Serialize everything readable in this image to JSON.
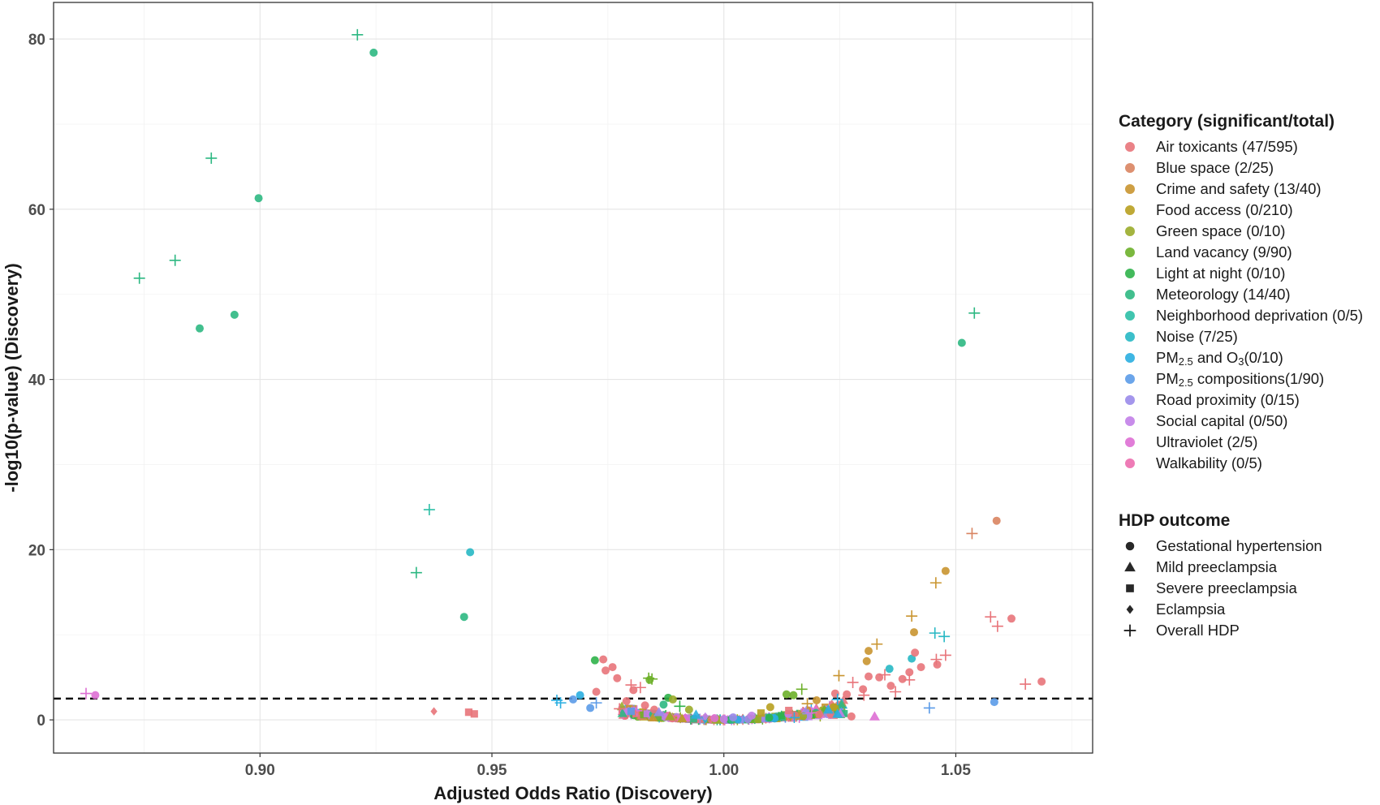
{
  "chart_data": {
    "type": "scatter",
    "xlabel": "Adjusted Odds Ratio (Discovery)",
    "ylabel": "-log10(p-value) (Discovery)",
    "xlim": [
      0.8555,
      1.0795
    ],
    "ylim": [
      -3.9,
      84.3
    ],
    "x_ticks": [
      0.9,
      0.95,
      1.0,
      1.05
    ],
    "x_tick_labels": [
      "0.90",
      "0.95",
      "1.00",
      "1.05"
    ],
    "y_ticks": [
      0,
      20,
      40,
      60,
      80
    ],
    "y_tick_labels": [
      "0",
      "20",
      "40",
      "60",
      "80"
    ],
    "grid": true,
    "threshold_line": {
      "y": 2.5,
      "style": "dashed"
    },
    "legend_position": "right",
    "legend_category": {
      "title": "Category (significant/total)",
      "items": [
        {
          "key": "air",
          "label": "Air toxicants (47/595)",
          "color": "#E8747A"
        },
        {
          "key": "blue",
          "label": "Blue space (2/25)",
          "color": "#D98461"
        },
        {
          "key": "crime",
          "label": "Crime and safety (13/40)",
          "color": "#C99530"
        },
        {
          "key": "food",
          "label": "Food access (0/210)",
          "color": "#B8A020"
        },
        {
          "key": "green",
          "label": "Green space (0/10)",
          "color": "#9AAC2A"
        },
        {
          "key": "land",
          "label": "Land vacancy (9/90)",
          "color": "#6DB02A"
        },
        {
          "key": "light",
          "label": "Light at night (0/10)",
          "color": "#2FB34A"
        },
        {
          "key": "meteo",
          "label": "Meteorology (14/40)",
          "color": "#2DB882"
        },
        {
          "key": "ndep",
          "label": "Neighborhood deprivation (0/5)",
          "color": "#2CBFA6"
        },
        {
          "key": "noise",
          "label": "Noise (7/25)",
          "color": "#27B8C4"
        },
        {
          "key": "pmo3",
          "label_main": "PM",
          "label_sub": "2.5",
          "label_mid": " and O",
          "label_sub2": "3",
          "label_end": "(0/10)",
          "color": "#2AAEE0"
        },
        {
          "key": "pmcomp",
          "label_main": "PM",
          "label_sub": "2.5",
          "label_end": " compositions(1/90)",
          "color": "#5B9BE8"
        },
        {
          "key": "road",
          "label": "Road proximity (0/15)",
          "color": "#9A8BEA"
        },
        {
          "key": "social",
          "label": "Social capital (0/50)",
          "color": "#C27FE8"
        },
        {
          "key": "uv",
          "label": "Ultraviolet (2/5)",
          "color": "#DE6FD4"
        },
        {
          "key": "walk",
          "label": "Walkability (0/5)",
          "color": "#EC6DAE"
        }
      ]
    },
    "legend_outcome": {
      "title": "HDP outcome",
      "items": [
        {
          "shape": "circle",
          "label": "Gestational hypertension"
        },
        {
          "shape": "triangle",
          "label": "Mild preeclampsia"
        },
        {
          "shape": "square",
          "label": "Severe preeclampsia"
        },
        {
          "shape": "diamond",
          "label": "Eclampsia"
        },
        {
          "shape": "plus",
          "label": "Overall HDP"
        }
      ]
    },
    "points": [
      {
        "x": 0.921,
        "y": 80.5,
        "cat": "meteo",
        "shape": "plus"
      },
      {
        "x": 0.9245,
        "y": 78.4,
        "cat": "meteo",
        "shape": "circle"
      },
      {
        "x": 0.8895,
        "y": 66.0,
        "cat": "meteo",
        "shape": "plus"
      },
      {
        "x": 0.8997,
        "y": 61.3,
        "cat": "meteo",
        "shape": "circle"
      },
      {
        "x": 0.8817,
        "y": 54.0,
        "cat": "meteo",
        "shape": "plus"
      },
      {
        "x": 0.874,
        "y": 51.9,
        "cat": "meteo",
        "shape": "plus"
      },
      {
        "x": 0.8945,
        "y": 47.6,
        "cat": "meteo",
        "shape": "circle"
      },
      {
        "x": 0.887,
        "y": 46.0,
        "cat": "meteo",
        "shape": "circle"
      },
      {
        "x": 1.054,
        "y": 47.8,
        "cat": "meteo",
        "shape": "plus"
      },
      {
        "x": 1.0513,
        "y": 44.3,
        "cat": "meteo",
        "shape": "circle"
      },
      {
        "x": 0.9365,
        "y": 24.7,
        "cat": "ndep",
        "shape": "plus"
      },
      {
        "x": 0.9453,
        "y": 19.7,
        "cat": "noise",
        "shape": "circle"
      },
      {
        "x": 0.9337,
        "y": 17.3,
        "cat": "meteo",
        "shape": "plus"
      },
      {
        "x": 0.944,
        "y": 12.1,
        "cat": "meteo",
        "shape": "circle"
      },
      {
        "x": 1.0588,
        "y": 23.4,
        "cat": "blue",
        "shape": "circle"
      },
      {
        "x": 1.0535,
        "y": 21.9,
        "cat": "blue",
        "shape": "plus"
      },
      {
        "x": 1.0478,
        "y": 17.5,
        "cat": "crime",
        "shape": "circle"
      },
      {
        "x": 1.0457,
        "y": 16.1,
        "cat": "crime",
        "shape": "plus"
      },
      {
        "x": 1.0405,
        "y": 12.2,
        "cat": "crime",
        "shape": "plus"
      },
      {
        "x": 1.041,
        "y": 10.3,
        "cat": "crime",
        "shape": "circle"
      },
      {
        "x": 1.033,
        "y": 8.9,
        "cat": "crime",
        "shape": "plus"
      },
      {
        "x": 1.0312,
        "y": 8.1,
        "cat": "crime",
        "shape": "circle"
      },
      {
        "x": 1.0308,
        "y": 6.9,
        "cat": "crime",
        "shape": "circle"
      },
      {
        "x": 1.0248,
        "y": 5.2,
        "cat": "crime",
        "shape": "plus"
      },
      {
        "x": 1.0455,
        "y": 10.2,
        "cat": "noise",
        "shape": "plus"
      },
      {
        "x": 1.0475,
        "y": 9.8,
        "cat": "noise",
        "shape": "plus"
      },
      {
        "x": 1.0405,
        "y": 7.2,
        "cat": "noise",
        "shape": "circle"
      },
      {
        "x": 1.0357,
        "y": 6.0,
        "cat": "noise",
        "shape": "circle"
      },
      {
        "x": 1.0575,
        "y": 12.1,
        "cat": "air",
        "shape": "plus"
      },
      {
        "x": 1.062,
        "y": 11.9,
        "cat": "air",
        "shape": "circle"
      },
      {
        "x": 1.059,
        "y": 11.0,
        "cat": "air",
        "shape": "plus"
      },
      {
        "x": 1.0412,
        "y": 7.9,
        "cat": "air",
        "shape": "circle"
      },
      {
        "x": 1.0478,
        "y": 7.6,
        "cat": "air",
        "shape": "plus"
      },
      {
        "x": 1.0458,
        "y": 7.1,
        "cat": "air",
        "shape": "plus"
      },
      {
        "x": 1.046,
        "y": 6.5,
        "cat": "air",
        "shape": "circle"
      },
      {
        "x": 1.0425,
        "y": 6.2,
        "cat": "air",
        "shape": "circle"
      },
      {
        "x": 1.04,
        "y": 5.6,
        "cat": "air",
        "shape": "circle"
      },
      {
        "x": 1.0385,
        "y": 4.8,
        "cat": "air",
        "shape": "circle"
      },
      {
        "x": 1.04,
        "y": 4.7,
        "cat": "air",
        "shape": "plus"
      },
      {
        "x": 1.0347,
        "y": 5.3,
        "cat": "air",
        "shape": "plus"
      },
      {
        "x": 1.0335,
        "y": 5.0,
        "cat": "air",
        "shape": "circle"
      },
      {
        "x": 1.0312,
        "y": 5.1,
        "cat": "air",
        "shape": "circle"
      },
      {
        "x": 1.036,
        "y": 4.0,
        "cat": "air",
        "shape": "circle"
      },
      {
        "x": 1.037,
        "y": 3.3,
        "cat": "air",
        "shape": "plus"
      },
      {
        "x": 1.0278,
        "y": 4.4,
        "cat": "air",
        "shape": "plus"
      },
      {
        "x": 1.03,
        "y": 3.6,
        "cat": "air",
        "shape": "circle"
      },
      {
        "x": 1.0302,
        "y": 2.9,
        "cat": "air",
        "shape": "plus"
      },
      {
        "x": 1.0265,
        "y": 3.0,
        "cat": "air",
        "shape": "circle"
      },
      {
        "x": 1.024,
        "y": 3.1,
        "cat": "air",
        "shape": "circle"
      },
      {
        "x": 1.0275,
        "y": 0.4,
        "cat": "air",
        "shape": "circle"
      },
      {
        "x": 1.065,
        "y": 4.2,
        "cat": "air",
        "shape": "plus"
      },
      {
        "x": 1.0685,
        "y": 4.5,
        "cat": "air",
        "shape": "circle"
      },
      {
        "x": 0.974,
        "y": 7.1,
        "cat": "air",
        "shape": "circle"
      },
      {
        "x": 0.976,
        "y": 6.2,
        "cat": "air",
        "shape": "circle"
      },
      {
        "x": 0.9745,
        "y": 5.8,
        "cat": "air",
        "shape": "circle"
      },
      {
        "x": 0.977,
        "y": 4.9,
        "cat": "air",
        "shape": "circle"
      },
      {
        "x": 0.98,
        "y": 4.1,
        "cat": "air",
        "shape": "plus"
      },
      {
        "x": 0.982,
        "y": 3.8,
        "cat": "air",
        "shape": "plus"
      },
      {
        "x": 0.9805,
        "y": 3.5,
        "cat": "air",
        "shape": "circle"
      },
      {
        "x": 0.9725,
        "y": 3.3,
        "cat": "air",
        "shape": "circle"
      },
      {
        "x": 0.979,
        "y": 2.2,
        "cat": "air",
        "shape": "circle"
      },
      {
        "x": 0.9775,
        "y": 1.3,
        "cat": "air",
        "shape": "plus"
      },
      {
        "x": 0.9722,
        "y": 7.0,
        "cat": "light",
        "shape": "circle"
      },
      {
        "x": 0.9838,
        "y": 4.9,
        "cat": "land",
        "shape": "plus"
      },
      {
        "x": 0.9845,
        "y": 4.8,
        "cat": "land",
        "shape": "plus"
      },
      {
        "x": 0.984,
        "y": 4.7,
        "cat": "land",
        "shape": "circle"
      },
      {
        "x": 1.0168,
        "y": 3.6,
        "cat": "land",
        "shape": "plus"
      },
      {
        "x": 1.0135,
        "y": 3.0,
        "cat": "land",
        "shape": "circle"
      },
      {
        "x": 0.8625,
        "y": 3.1,
        "cat": "uv",
        "shape": "plus"
      },
      {
        "x": 0.8645,
        "y": 2.9,
        "cat": "uv",
        "shape": "circle"
      },
      {
        "x": 0.9375,
        "y": 1.0,
        "cat": "air",
        "shape": "diamond"
      },
      {
        "x": 0.945,
        "y": 0.9,
        "cat": "air",
        "shape": "square"
      },
      {
        "x": 0.9462,
        "y": 0.7,
        "cat": "air",
        "shape": "square"
      },
      {
        "x": 1.0325,
        "y": 0.4,
        "cat": "uv",
        "shape": "triangle"
      },
      {
        "x": 0.964,
        "y": 2.3,
        "cat": "pmo3",
        "shape": "plus"
      },
      {
        "x": 0.9648,
        "y": 2.0,
        "cat": "pmo3",
        "shape": "plus"
      },
      {
        "x": 0.969,
        "y": 2.9,
        "cat": "pmo3",
        "shape": "circle"
      },
      {
        "x": 0.9675,
        "y": 2.4,
        "cat": "pmcomp",
        "shape": "circle"
      },
      {
        "x": 0.9725,
        "y": 2.0,
        "cat": "pmcomp",
        "shape": "plus"
      },
      {
        "x": 0.9712,
        "y": 1.4,
        "cat": "pmcomp",
        "shape": "circle"
      },
      {
        "x": 1.0583,
        "y": 2.1,
        "cat": "pmcomp",
        "shape": "circle"
      },
      {
        "x": 1.0443,
        "y": 1.4,
        "cat": "pmcomp",
        "shape": "plus"
      },
      {
        "x": 1.0245,
        "y": 2.4,
        "cat": "pmo3",
        "shape": "plus"
      },
      {
        "x": 1.0225,
        "y": 1.2,
        "cat": "pmo3",
        "shape": "triangle"
      },
      {
        "x": 1.0245,
        "y": 0.7,
        "cat": "pmo3",
        "shape": "triangle"
      },
      {
        "x": 0.988,
        "y": 2.6,
        "cat": "light",
        "shape": "circle"
      },
      {
        "x": 0.989,
        "y": 2.4,
        "cat": "green",
        "shape": "circle"
      },
      {
        "x": 0.987,
        "y": 1.8,
        "cat": "meteo",
        "shape": "circle"
      },
      {
        "x": 0.9905,
        "y": 1.6,
        "cat": "light",
        "shape": "plus"
      },
      {
        "x": 0.9925,
        "y": 1.2,
        "cat": "green",
        "shape": "circle"
      },
      {
        "x": 1.015,
        "y": 2.9,
        "cat": "land",
        "shape": "circle"
      },
      {
        "x": 1.02,
        "y": 2.3,
        "cat": "crime",
        "shape": "circle"
      },
      {
        "x": 1.018,
        "y": 1.9,
        "cat": "crime",
        "shape": "plus"
      },
      {
        "x": 1.01,
        "y": 1.5,
        "cat": "food",
        "shape": "circle"
      },
      {
        "x": 0.983,
        "y": 1.7,
        "cat": "air",
        "shape": "circle"
      },
      {
        "x": 0.985,
        "y": 1.2,
        "cat": "air",
        "shape": "circle"
      },
      {
        "x": 0.986,
        "y": 0.9,
        "cat": "road",
        "shape": "triangle"
      },
      {
        "x": 0.98,
        "y": 1.0,
        "cat": "pmcomp",
        "shape": "square"
      },
      {
        "x": 1.014,
        "y": 1.1,
        "cat": "air",
        "shape": "square"
      },
      {
        "x": 1.008,
        "y": 0.8,
        "cat": "food",
        "shape": "square"
      },
      {
        "x": 0.994,
        "y": 0.6,
        "cat": "pmo3",
        "shape": "triangle"
      },
      {
        "x": 1.006,
        "y": 0.5,
        "cat": "social",
        "shape": "circle"
      },
      {
        "x": 0.996,
        "y": 0.4,
        "cat": "social",
        "shape": "diamond"
      },
      {
        "x": 1.002,
        "y": 0.3,
        "cat": "road",
        "shape": "circle"
      },
      {
        "x": 1.0,
        "y": 0.1,
        "cat": "social",
        "shape": "circle"
      },
      {
        "x": 0.998,
        "y": 0.2,
        "cat": "uv",
        "shape": "circle"
      }
    ]
  }
}
